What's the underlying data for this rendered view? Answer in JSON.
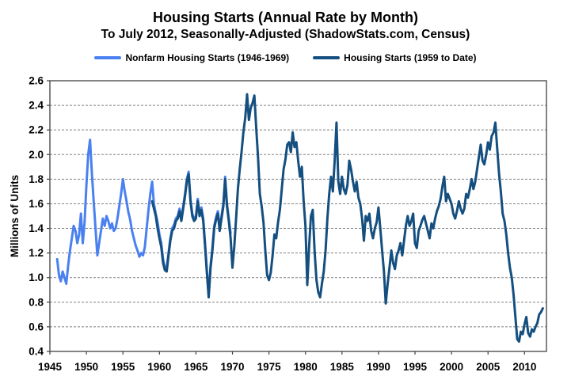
{
  "header": {
    "title": "Housing Starts (Annual Rate by Month)",
    "subtitle": "To July 2012, Seasonally-Adjusted (ShadowStats.com, Census)"
  },
  "legend": [
    {
      "label": "Nonfarm Housing Starts (1946-1969)",
      "color": "#4A80F0"
    },
    {
      "label": "Housing Starts (1959 to Date)",
      "color": "#144F7F"
    }
  ],
  "chart_data": {
    "type": "line",
    "title": "Housing Starts (Annual Rate by Month)",
    "subtitle": "To July 2012, Seasonally-Adjusted (ShadowStats.com, Census)",
    "xlabel": "",
    "ylabel": "Millions of Units",
    "xlim": [
      1945,
      2013
    ],
    "ylim": [
      0.4,
      2.6
    ],
    "xticks": [
      1945,
      1950,
      1955,
      1960,
      1965,
      1970,
      1975,
      1980,
      1985,
      1990,
      1995,
      2000,
      2005,
      2010
    ],
    "yticks": [
      0.4,
      0.6,
      0.8,
      1.0,
      1.2,
      1.4,
      1.6,
      1.8,
      2.0,
      2.2,
      2.4,
      2.6
    ],
    "grid": "horizontal",
    "legend_position": "top",
    "grid_color": "#808080",
    "axis_color": "#404040",
    "series": [
      {
        "id": "nonfarm-housing-starts",
        "name": "Nonfarm Housing Starts (1946-1969)",
        "color": "#4A80F0",
        "x_start": 1946.0,
        "x_step": 0.25,
        "values": [
          1.15,
          1.02,
          0.97,
          1.05,
          1.0,
          0.95,
          1.1,
          1.22,
          1.32,
          1.42,
          1.38,
          1.28,
          1.35,
          1.52,
          1.28,
          1.45,
          1.75,
          2.0,
          2.12,
          1.85,
          1.62,
          1.4,
          1.18,
          1.28,
          1.38,
          1.48,
          1.42,
          1.5,
          1.46,
          1.4,
          1.44,
          1.38,
          1.4,
          1.48,
          1.58,
          1.68,
          1.8,
          1.7,
          1.62,
          1.53,
          1.47,
          1.38,
          1.32,
          1.26,
          1.22,
          1.17,
          1.2,
          1.18,
          1.25,
          1.4,
          1.55,
          1.68,
          1.78,
          1.6,
          1.52,
          1.45,
          1.35,
          1.28,
          1.15,
          1.08,
          1.08,
          1.2,
          1.32,
          1.4,
          1.43,
          1.48,
          1.5,
          1.56,
          1.48,
          1.58,
          1.68,
          1.8,
          1.86,
          1.64,
          1.52,
          1.48,
          1.5,
          1.64,
          1.52,
          1.57,
          1.48,
          1.28,
          1.06,
          0.86,
          1.1,
          1.24,
          1.42,
          1.49,
          1.54,
          1.4,
          1.5,
          1.6,
          1.82,
          1.6,
          1.48,
          1.36
        ]
      },
      {
        "id": "housing-starts",
        "name": "Housing Starts (1959 to Date)",
        "color": "#144F7F",
        "x_start": 1959.0,
        "x_step": 0.25,
        "values": [
          1.62,
          1.56,
          1.5,
          1.4,
          1.32,
          1.25,
          1.12,
          1.06,
          1.05,
          1.18,
          1.3,
          1.38,
          1.4,
          1.46,
          1.48,
          1.54,
          1.46,
          1.56,
          1.66,
          1.78,
          1.84,
          1.62,
          1.5,
          1.46,
          1.48,
          1.62,
          1.5,
          1.55,
          1.46,
          1.26,
          1.04,
          0.84,
          1.08,
          1.22,
          1.4,
          1.47,
          1.52,
          1.38,
          1.48,
          1.58,
          1.8,
          1.58,
          1.46,
          1.32,
          1.08,
          1.25,
          1.48,
          1.72,
          1.88,
          2.02,
          2.18,
          2.3,
          2.49,
          2.28,
          2.38,
          2.42,
          2.48,
          2.22,
          1.98,
          1.68,
          1.58,
          1.45,
          1.22,
          1.02,
          0.98,
          1.04,
          1.18,
          1.35,
          1.32,
          1.45,
          1.55,
          1.72,
          1.88,
          1.96,
          2.08,
          2.1,
          2.02,
          2.18,
          2.06,
          2.1,
          1.95,
          1.82,
          1.9,
          1.62,
          1.42,
          0.94,
          1.25,
          1.5,
          1.55,
          1.22,
          0.98,
          0.88,
          0.84,
          0.95,
          1.05,
          1.22,
          1.48,
          1.68,
          1.82,
          1.7,
          1.95,
          2.26,
          1.78,
          1.68,
          1.82,
          1.72,
          1.68,
          1.75,
          1.95,
          1.88,
          1.78,
          1.7,
          1.78,
          1.65,
          1.6,
          1.48,
          1.3,
          1.5,
          1.46,
          1.52,
          1.38,
          1.32,
          1.4,
          1.45,
          1.57,
          1.4,
          1.22,
          1.05,
          0.79,
          0.95,
          1.08,
          1.22,
          1.12,
          1.07,
          1.18,
          1.22,
          1.28,
          1.18,
          1.3,
          1.42,
          1.5,
          1.42,
          1.46,
          1.52,
          1.28,
          1.24,
          1.38,
          1.42,
          1.47,
          1.5,
          1.44,
          1.38,
          1.32,
          1.44,
          1.4,
          1.48,
          1.54,
          1.58,
          1.64,
          1.74,
          1.82,
          1.62,
          1.68,
          1.64,
          1.6,
          1.52,
          1.48,
          1.54,
          1.62,
          1.56,
          1.52,
          1.56,
          1.68,
          1.65,
          1.72,
          1.8,
          1.72,
          1.78,
          1.88,
          1.98,
          2.08,
          1.95,
          1.92,
          2.0,
          2.1,
          2.04,
          2.15,
          2.18,
          2.26,
          2.05,
          1.85,
          1.7,
          1.52,
          1.46,
          1.35,
          1.2,
          1.08,
          1.0,
          0.86,
          0.68,
          0.5,
          0.48,
          0.56,
          0.54,
          0.62,
          0.68,
          0.55,
          0.52,
          0.58,
          0.56,
          0.6,
          0.63,
          0.7,
          0.72,
          0.75
        ]
      }
    ]
  }
}
